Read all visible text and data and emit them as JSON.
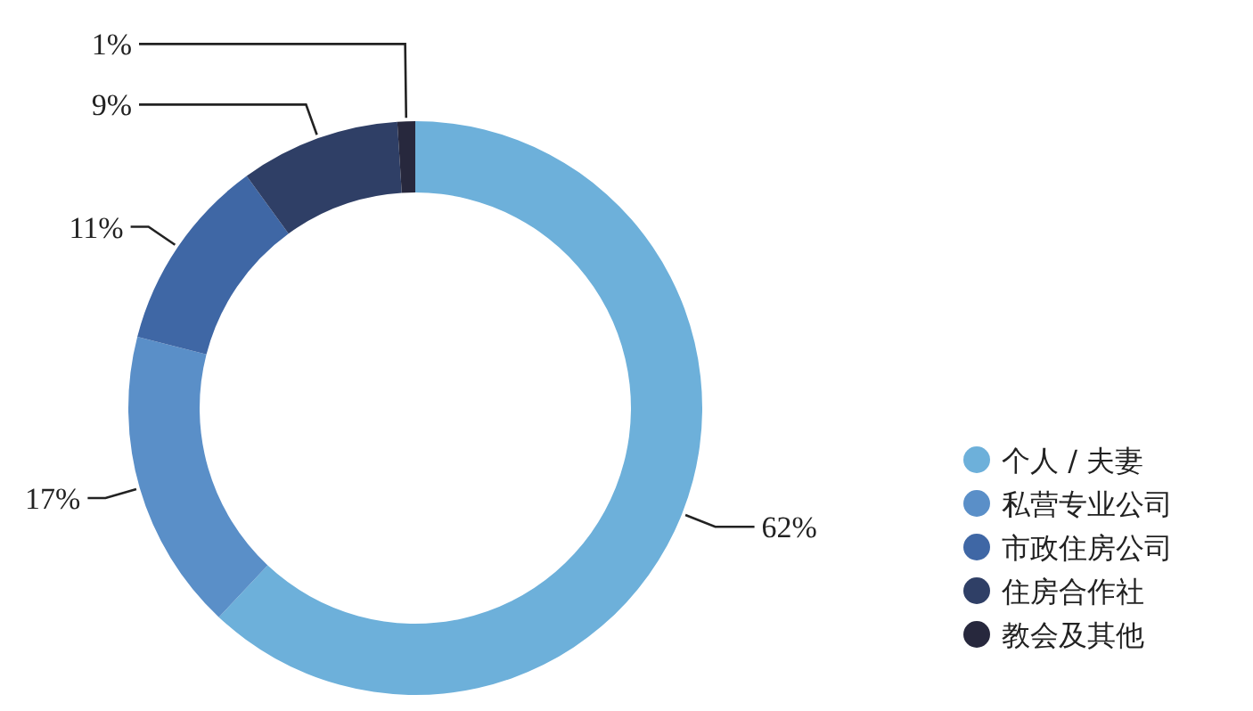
{
  "chart_data": {
    "type": "donut",
    "categories": [
      "个人 / 夫妻",
      "私营专业公司",
      "市政住房公司",
      "住房合作社",
      "教会及其他"
    ],
    "values": [
      62,
      17,
      11,
      9,
      1
    ],
    "colors": [
      "#6db0da",
      "#5a8fc8",
      "#3f67a5",
      "#2f3f66",
      "#27283d"
    ],
    "value_labels": [
      "62%",
      "17%",
      "11%",
      "9%",
      "1%"
    ],
    "legend": "bottom right"
  }
}
